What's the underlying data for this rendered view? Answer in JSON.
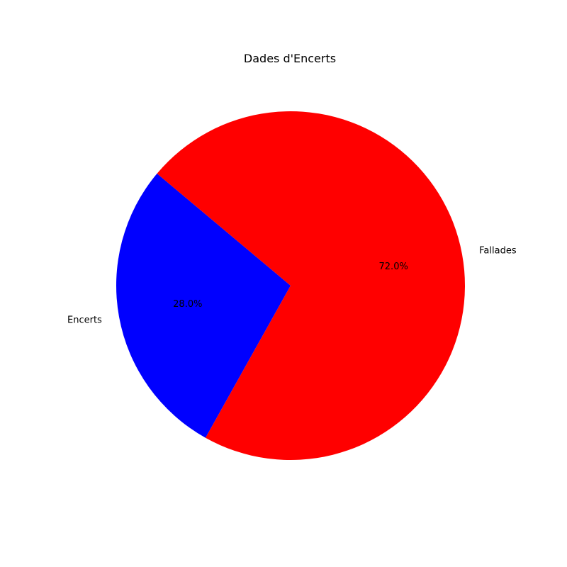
{
  "chart_data": {
    "type": "pie",
    "title": "Dades d'Encerts",
    "slices": [
      {
        "label": "Encerts",
        "value": 28.0,
        "percent_label": "28.0%",
        "color": "#0000ff"
      },
      {
        "label": "Fallades",
        "value": 72.0,
        "percent_label": "72.0%",
        "color": "#ff0000"
      }
    ],
    "start_angle_deg": 140,
    "direction": "counterclockwise",
    "legend": "none"
  }
}
